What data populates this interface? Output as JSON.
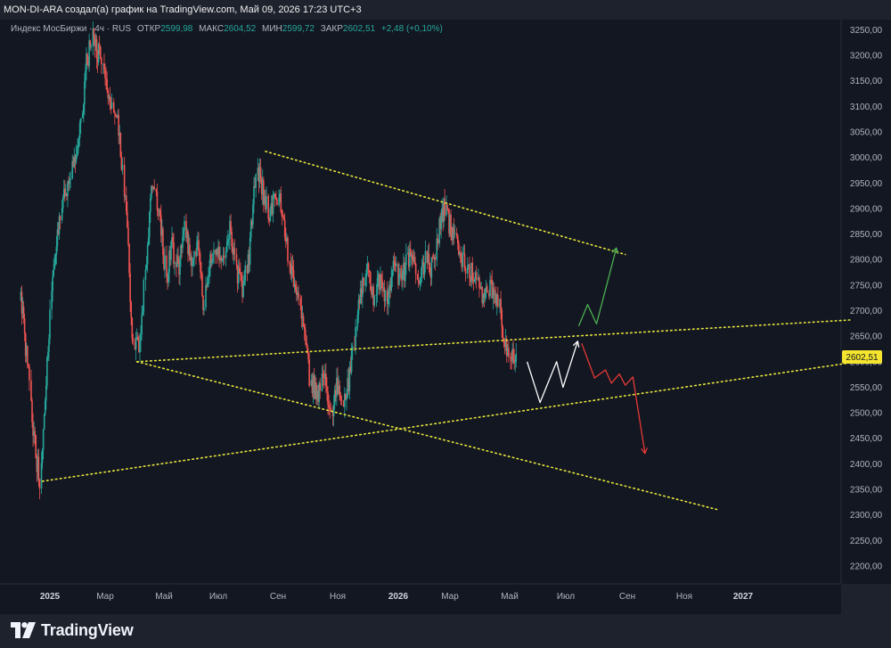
{
  "header": {
    "caption": "MON-DI-ARA создал(а) график на TradingView.com, Май 09, 2026 17:23 UTC+3"
  },
  "legend": {
    "symbol": "Индекс МосБиржи · 4ч · RUS",
    "open_label": "ОТКР",
    "open_value": "2599,98",
    "high_label": "МАКС",
    "high_value": "2604,52",
    "low_label": "МИН",
    "low_value": "2599,72",
    "close_label": "ЗАКР",
    "close_value": "2602,51",
    "change": "+2,48 (+0,10%)"
  },
  "footer": {
    "brand": "TradingView"
  },
  "colors": {
    "background": "#131722",
    "up": "#26a69a",
    "down": "#ef5350",
    "trendline": "#e8e83a",
    "price_tag_bg": "#f5e52e",
    "projection_white": "#ffffff",
    "projection_green": "#4caf50",
    "projection_red": "#e53935"
  },
  "chart_data": {
    "type": "candlestick",
    "title": "Индекс МосБиржи",
    "timeframe": "4ч",
    "x_axis": {
      "ticks": [
        "2025",
        "Мар",
        "Май",
        "Июл",
        "Сен",
        "Ноя",
        "2026",
        "Мар",
        "Май",
        "Июл",
        "Сен",
        "Ноя",
        "2027"
      ],
      "tick_dates": [
        "2025-01-01",
        "2025-03-01",
        "2025-05-01",
        "2025-07-01",
        "2025-09-01",
        "2025-11-01",
        "2026-01-01",
        "2026-03-01",
        "2026-05-01",
        "2026-07-01",
        "2026-09-01",
        "2026-11-01",
        "2027-01-01"
      ]
    },
    "y_axis": {
      "ticks": [
        "3250,00",
        "3200,00",
        "3150,00",
        "3100,00",
        "3050,00",
        "3000,00",
        "2950,00",
        "2900,00",
        "2850,00",
        "2800,00",
        "2750,00",
        "2700,00",
        "2650,00",
        "2600,00",
        "2550,00",
        "2500,00",
        "2450,00",
        "2400,00",
        "2350,00",
        "2300,00",
        "2250,00",
        "2200,00"
      ],
      "tick_values": [
        3250,
        3200,
        3150,
        3100,
        3050,
        3000,
        2950,
        2900,
        2850,
        2800,
        2750,
        2700,
        2650,
        2600,
        2550,
        2500,
        2450,
        2400,
        2350,
        2300,
        2250,
        2200
      ],
      "range": [
        2165,
        3270
      ]
    },
    "last_price": {
      "label": "2602,51",
      "value": 2602.51
    },
    "price_path": [
      [
        "2024-12-01",
        2720
      ],
      [
        "2024-12-08",
        2610
      ],
      [
        "2024-12-15",
        2450
      ],
      [
        "2024-12-22",
        2365
      ],
      [
        "2024-12-29",
        2580
      ],
      [
        "2025-01-05",
        2780
      ],
      [
        "2025-01-12",
        2880
      ],
      [
        "2025-01-19",
        2940
      ],
      [
        "2025-01-26",
        2990
      ],
      [
        "2025-02-02",
        3040
      ],
      [
        "2025-02-09",
        3180
      ],
      [
        "2025-02-16",
        3230
      ],
      [
        "2025-02-23",
        3200
      ],
      [
        "2025-03-02",
        3150
      ],
      [
        "2025-03-09",
        3100
      ],
      [
        "2025-03-16",
        3060
      ],
      [
        "2025-03-23",
        2900
      ],
      [
        "2025-03-30",
        2650
      ],
      [
        "2025-04-06",
        2620
      ],
      [
        "2025-04-13",
        2800
      ],
      [
        "2025-04-20",
        2960
      ],
      [
        "2025-04-27",
        2880
      ],
      [
        "2025-05-04",
        2770
      ],
      [
        "2025-05-11",
        2830
      ],
      [
        "2025-05-18",
        2770
      ],
      [
        "2025-05-25",
        2870
      ],
      [
        "2025-06-01",
        2790
      ],
      [
        "2025-06-08",
        2830
      ],
      [
        "2025-06-15",
        2720
      ],
      [
        "2025-06-22",
        2790
      ],
      [
        "2025-06-29",
        2820
      ],
      [
        "2025-07-06",
        2790
      ],
      [
        "2025-07-13",
        2860
      ],
      [
        "2025-07-20",
        2780
      ],
      [
        "2025-07-27",
        2740
      ],
      [
        "2025-08-03",
        2820
      ],
      [
        "2025-08-10",
        2990
      ],
      [
        "2025-08-17",
        2930
      ],
      [
        "2025-08-24",
        2890
      ],
      [
        "2025-08-31",
        2930
      ],
      [
        "2025-09-07",
        2880
      ],
      [
        "2025-09-14",
        2790
      ],
      [
        "2025-09-21",
        2720
      ],
      [
        "2025-09-28",
        2660
      ],
      [
        "2025-10-05",
        2560
      ],
      [
        "2025-10-12",
        2530
      ],
      [
        "2025-10-19",
        2580
      ],
      [
        "2025-10-26",
        2500
      ],
      [
        "2025-11-02",
        2560
      ],
      [
        "2025-11-09",
        2520
      ],
      [
        "2025-11-16",
        2610
      ],
      [
        "2025-11-23",
        2720
      ],
      [
        "2025-11-30",
        2780
      ],
      [
        "2025-12-07",
        2730
      ],
      [
        "2025-12-14",
        2760
      ],
      [
        "2025-12-21",
        2730
      ],
      [
        "2025-12-28",
        2790
      ],
      [
        "2026-01-04",
        2750
      ],
      [
        "2026-01-11",
        2790
      ],
      [
        "2026-01-18",
        2810
      ],
      [
        "2026-01-25",
        2760
      ],
      [
        "2026-02-01",
        2800
      ],
      [
        "2026-02-08",
        2780
      ],
      [
        "2026-02-15",
        2840
      ],
      [
        "2026-02-22",
        2900
      ],
      [
        "2026-03-01",
        2870
      ],
      [
        "2026-03-08",
        2840
      ],
      [
        "2026-03-15",
        2790
      ],
      [
        "2026-03-22",
        2780
      ],
      [
        "2026-03-29",
        2760
      ],
      [
        "2026-04-05",
        2720
      ],
      [
        "2026-04-12",
        2750
      ],
      [
        "2026-04-19",
        2730
      ],
      [
        "2026-04-26",
        2640
      ],
      [
        "2026-05-03",
        2620
      ],
      [
        "2026-05-09",
        2602.51
      ]
    ],
    "trendlines": [
      {
        "points": [
          [
            "2025-08-19",
            3012
          ],
          [
            "2026-08-30",
            2810
          ]
        ],
        "style": "dotted",
        "color": "#e8e83a"
      },
      {
        "points": [
          [
            "2025-04-03",
            2600
          ],
          [
            "2026-12-06",
            2310
          ]
        ],
        "style": "dotted",
        "color": "#e8e83a"
      },
      {
        "points": [
          [
            "2025-04-03",
            2600
          ],
          [
            "2027-04-25",
            2682
          ]
        ],
        "style": "dotted",
        "color": "#e8e83a"
      },
      {
        "points": [
          [
            "2024-12-24",
            2366
          ],
          [
            "2027-04-30",
            2600
          ]
        ],
        "style": "dotted",
        "color": "#e8e83a"
      }
    ],
    "projections": [
      {
        "color": "#ffffff",
        "points": [
          [
            "2026-05-20",
            2600
          ],
          [
            "2026-06-03",
            2520
          ],
          [
            "2026-06-21",
            2600
          ],
          [
            "2026-06-28",
            2550
          ],
          [
            "2026-07-13",
            2640
          ]
        ],
        "arrow": true
      },
      {
        "color": "#4caf50",
        "points": [
          [
            "2026-07-14",
            2670
          ],
          [
            "2026-07-23",
            2712
          ],
          [
            "2026-08-01",
            2674
          ],
          [
            "2026-08-21",
            2823
          ]
        ],
        "arrow": true
      },
      {
        "color": "#e53935",
        "points": [
          [
            "2026-07-17",
            2636
          ],
          [
            "2026-07-30",
            2568
          ],
          [
            "2026-08-10",
            2584
          ],
          [
            "2026-08-16",
            2558
          ],
          [
            "2026-08-24",
            2576
          ],
          [
            "2026-08-30",
            2554
          ],
          [
            "2026-09-07",
            2570
          ],
          [
            "2026-09-20",
            2420
          ]
        ],
        "arrow": true
      }
    ]
  }
}
